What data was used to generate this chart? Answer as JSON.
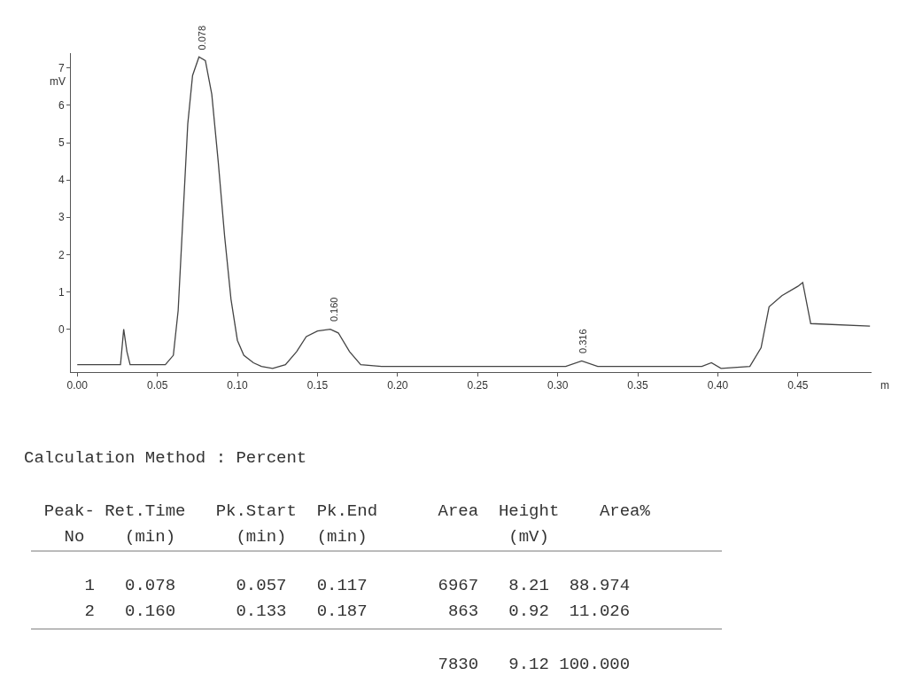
{
  "chart_data": {
    "type": "line",
    "xlabel": "m",
    "ylabel": "mV",
    "x": [
      0.0,
      0.027,
      0.029,
      0.031,
      0.033,
      0.055,
      0.06,
      0.063,
      0.066,
      0.069,
      0.072,
      0.076,
      0.08,
      0.084,
      0.088,
      0.092,
      0.096,
      0.1,
      0.104,
      0.11,
      0.115,
      0.122,
      0.13,
      0.137,
      0.143,
      0.15,
      0.158,
      0.163,
      0.17,
      0.177,
      0.19,
      0.25,
      0.305,
      0.315,
      0.325,
      0.39,
      0.396,
      0.402,
      0.42,
      0.427,
      0.432,
      0.44,
      0.45,
      0.453,
      0.458,
      0.495
    ],
    "series": [
      {
        "color": "#444444",
        "values": [
          -0.95,
          -0.95,
          0.0,
          -0.6,
          -0.95,
          -0.95,
          -0.7,
          0.5,
          3.0,
          5.5,
          6.8,
          7.3,
          7.2,
          6.3,
          4.5,
          2.5,
          0.8,
          -0.3,
          -0.7,
          -0.9,
          -1.0,
          -1.05,
          -0.95,
          -0.6,
          -0.2,
          -0.05,
          0.0,
          -0.1,
          -0.6,
          -0.95,
          -1.0,
          -1.0,
          -1.0,
          -0.85,
          -1.0,
          -1.0,
          -0.9,
          -1.05,
          -1.0,
          -0.5,
          0.6,
          0.9,
          1.15,
          1.25,
          0.15,
          0.08
        ]
      }
    ],
    "xlim": [
      -0.004,
      0.496
    ],
    "ylim": [
      -1.15,
      7.4
    ],
    "xticks": [
      {
        "value": 0,
        "label": "0.00"
      },
      {
        "value": 0.05,
        "label": "0.05"
      },
      {
        "value": 0.1,
        "label": "0.10"
      },
      {
        "value": 0.15,
        "label": "0.15"
      },
      {
        "value": 0.2,
        "label": "0.20"
      },
      {
        "value": 0.25,
        "label": "0.25"
      },
      {
        "value": 0.3,
        "label": "0.30"
      },
      {
        "value": 0.35,
        "label": "0.35"
      },
      {
        "value": 0.4,
        "label": "0.40"
      },
      {
        "value": 0.45,
        "label": "0.45"
      }
    ],
    "yticks": [
      0,
      1,
      2,
      3,
      4,
      5,
      6,
      7
    ],
    "line_style": "solid",
    "marker": "none",
    "annotations": [
      {
        "text": "0.078",
        "x": 0.078,
        "y": 7.3
      },
      {
        "text": "0.160",
        "x": 0.16,
        "y": 0.0
      },
      {
        "text": "0.316",
        "x": 0.316,
        "y": -0.85
      },
      "Calculation Method : Percent",
      "  Peak- Ret.Time   Pk.Start  Pk.End      Area  Height    Area%",
      "    No    (min)      (min)   (min)              (mV)",
      "      1   0.078      0.057   0.117       6967   8.21  88.974",
      "      2   0.160      0.133   0.187        863   0.92  11.026",
      "                                         7830   9.12 100.000"
    ]
  }
}
